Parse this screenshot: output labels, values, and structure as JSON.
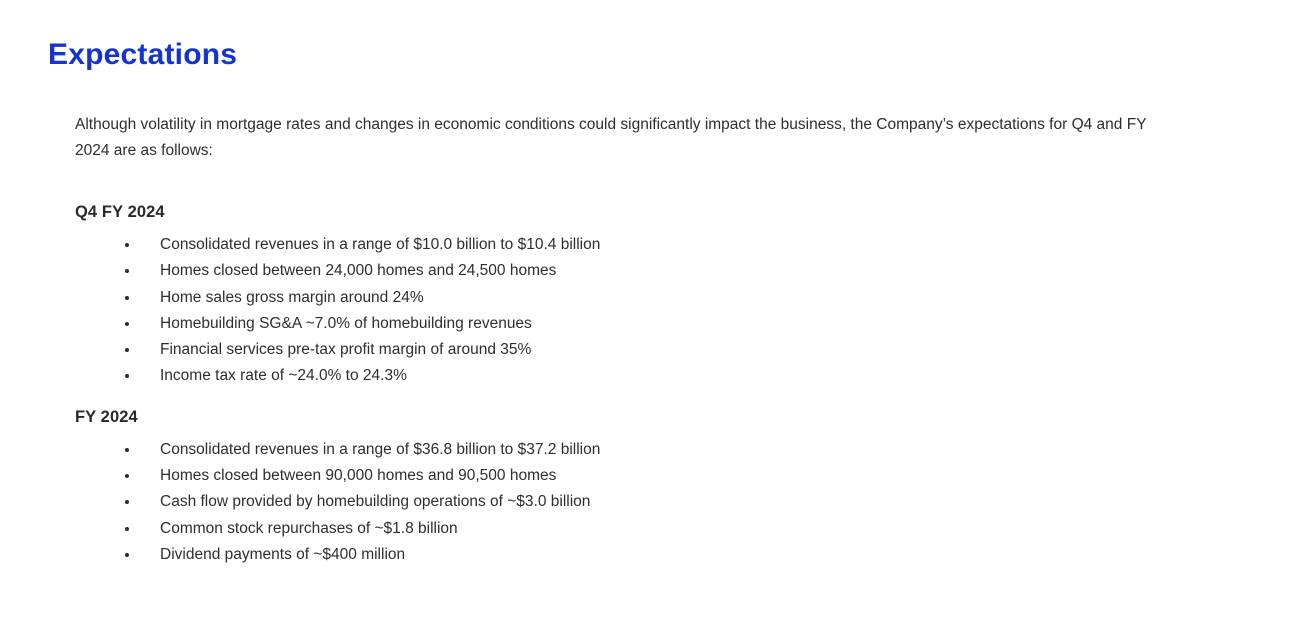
{
  "page": {
    "title": "Expectations",
    "intro": "Although volatility in mortgage rates and changes in economic conditions could significantly impact the business, the Company’s expectations for Q4 and FY 2024 are as follows:"
  },
  "sections": [
    {
      "heading": "Q4 FY 2024",
      "bullets": [
        "Consolidated revenues in a range of $10.0 billion to $10.4 billion",
        "Homes closed between 24,000 homes and 24,500 homes",
        "Home sales gross margin around 24%",
        "Homebuilding SG&A ~7.0% of homebuilding revenues",
        "Financial services pre-tax profit margin of around 35%",
        "Income tax rate of ~24.0% to 24.3%"
      ]
    },
    {
      "heading": "FY 2024",
      "bullets": [
        "Consolidated revenues in a range of $36.8 billion to $37.2 billion",
        "Homes closed between 90,000 homes and 90,500 homes",
        "Cash flow provided by homebuilding operations of ~$3.0 billion",
        "Common stock repurchases of ~$1.8 billion",
        "Dividend payments of ~$400 million"
      ]
    }
  ],
  "colors": {
    "heading_blue": "#1434CB",
    "body_text": "#2E2E2E",
    "background": "#FFFFFF"
  }
}
